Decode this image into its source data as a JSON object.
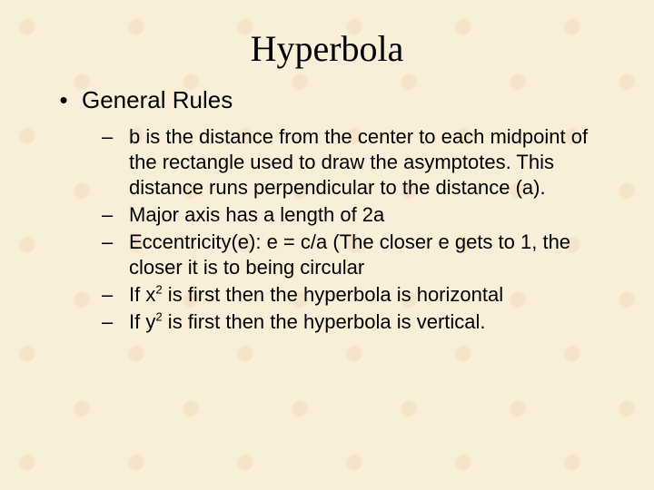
{
  "background_color": "#f9eed8",
  "text_color": "#000000",
  "title": {
    "text": "Hyperbola",
    "font_family": "Times New Roman",
    "font_size_pt": 40,
    "align": "center"
  },
  "content": {
    "font_family": "Arial",
    "level1": {
      "bullet_char": "•",
      "font_size_pt": 26,
      "items": [
        {
          "text": "General Rules"
        }
      ]
    },
    "level2": {
      "dash_char": "–",
      "font_size_pt": 22,
      "items": [
        {
          "text": "b is the distance from the center to each midpoint of the rectangle used to draw the asymptotes.  This distance runs perpendicular to the distance (a)."
        },
        {
          "text": "Major axis has a length of 2a"
        },
        {
          "text": "Eccentricity(e):  e = c/a (The closer e gets to 1, the closer it is to being circular"
        },
        {
          "prefix": "If x",
          "sup": "2",
          "suffix": " is first then the hyperbola is horizontal"
        },
        {
          "prefix": "If y",
          "sup": "2",
          "suffix": " is first then the hyperbola is vertical."
        }
      ]
    }
  }
}
